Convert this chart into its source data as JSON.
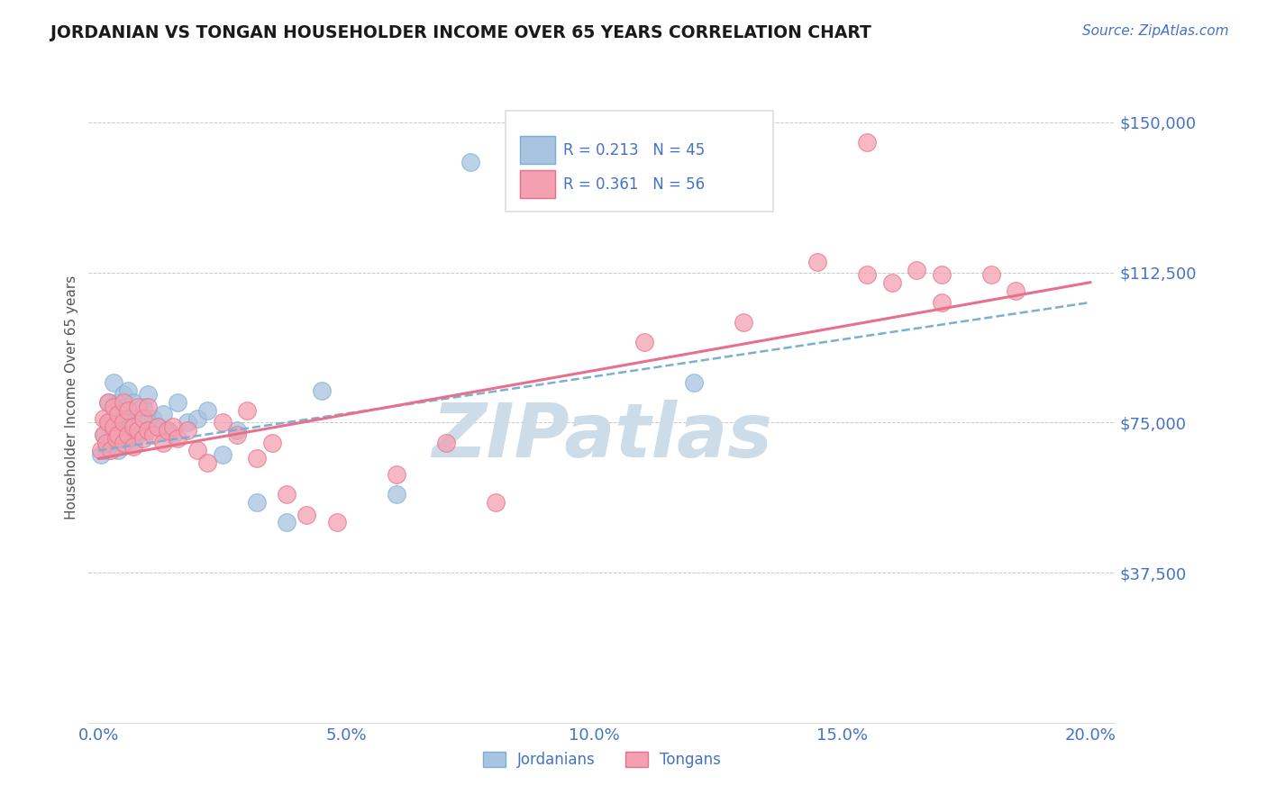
{
  "title": "JORDANIAN VS TONGAN HOUSEHOLDER INCOME OVER 65 YEARS CORRELATION CHART",
  "source_text": "Source: ZipAtlas.com",
  "ylabel": "Householder Income Over 65 years",
  "xlim": [
    -0.002,
    0.205
  ],
  "ylim": [
    0,
    162500
  ],
  "yticks": [
    0,
    37500,
    75000,
    112500,
    150000
  ],
  "ytick_labels": [
    "",
    "$37,500",
    "$75,000",
    "$112,500",
    "$150,000"
  ],
  "xticks": [
    0.0,
    0.05,
    0.1,
    0.15,
    0.2
  ],
  "xtick_labels": [
    "0.0%",
    "5.0%",
    "10.0%",
    "15.0%",
    "20.0%"
  ],
  "legend_r1": "R = 0.213",
  "legend_n1": "N = 45",
  "legend_r2": "R = 0.361",
  "legend_n2": "N = 56",
  "color_jordan": "#a8c4e0",
  "color_tonga": "#f4a0b0",
  "color_jordan_line": "#7bafd4",
  "color_tonga_line": "#e8708a",
  "color_text_blue": "#4472c4",
  "color_title": "#1a1a1a",
  "watermark_text": "ZIPatlas",
  "watermark_color": "#ccdce8",
  "background_color": "#ffffff",
  "grid_color": "#b0b0b0",
  "jordan_x": [
    0.0005,
    0.001,
    0.0015,
    0.002,
    0.002,
    0.0025,
    0.003,
    0.003,
    0.0035,
    0.004,
    0.004,
    0.004,
    0.005,
    0.005,
    0.005,
    0.0055,
    0.006,
    0.006,
    0.006,
    0.007,
    0.007,
    0.007,
    0.008,
    0.008,
    0.009,
    0.009,
    0.01,
    0.01,
    0.011,
    0.012,
    0.013,
    0.014,
    0.015,
    0.016,
    0.018,
    0.02,
    0.022,
    0.025,
    0.028,
    0.032,
    0.038,
    0.045,
    0.06,
    0.075,
    0.12
  ],
  "jordan_y": [
    67000,
    72000,
    68000,
    75000,
    80000,
    70000,
    85000,
    73000,
    78000,
    68000,
    74000,
    80000,
    70000,
    76000,
    82000,
    73000,
    71000,
    77000,
    83000,
    70000,
    75000,
    80000,
    72000,
    78000,
    73000,
    79000,
    75000,
    82000,
    76000,
    74000,
    77000,
    73000,
    72000,
    80000,
    75000,
    76000,
    78000,
    67000,
    73000,
    55000,
    50000,
    83000,
    57000,
    140000,
    85000
  ],
  "tonga_x": [
    0.0005,
    0.001,
    0.001,
    0.0015,
    0.002,
    0.002,
    0.0025,
    0.003,
    0.003,
    0.0035,
    0.004,
    0.004,
    0.005,
    0.005,
    0.005,
    0.006,
    0.006,
    0.007,
    0.007,
    0.008,
    0.008,
    0.009,
    0.009,
    0.01,
    0.01,
    0.011,
    0.012,
    0.013,
    0.014,
    0.015,
    0.016,
    0.018,
    0.02,
    0.022,
    0.025,
    0.028,
    0.03,
    0.032,
    0.035,
    0.038,
    0.042,
    0.048,
    0.06,
    0.07,
    0.08,
    0.11,
    0.13,
    0.145,
    0.155,
    0.16,
    0.165,
    0.17,
    0.18,
    0.185,
    0.155,
    0.17
  ],
  "tonga_y": [
    68000,
    72000,
    76000,
    70000,
    75000,
    80000,
    68000,
    74000,
    79000,
    71000,
    77000,
    72000,
    70000,
    75000,
    80000,
    72000,
    78000,
    69000,
    74000,
    73000,
    79000,
    71000,
    76000,
    73000,
    79000,
    72000,
    74000,
    70000,
    73000,
    74000,
    71000,
    73000,
    68000,
    65000,
    75000,
    72000,
    78000,
    66000,
    70000,
    57000,
    52000,
    50000,
    62000,
    70000,
    55000,
    95000,
    100000,
    115000,
    112000,
    110000,
    113000,
    105000,
    112000,
    108000,
    145000,
    112000
  ],
  "jordan_line_x0": 0.0,
  "jordan_line_x1": 0.2,
  "jordan_line_y0": 68000,
  "jordan_line_y1": 105000,
  "tonga_line_x0": 0.0,
  "tonga_line_x1": 0.2,
  "tonga_line_y0": 66000,
  "tonga_line_y1": 110000
}
